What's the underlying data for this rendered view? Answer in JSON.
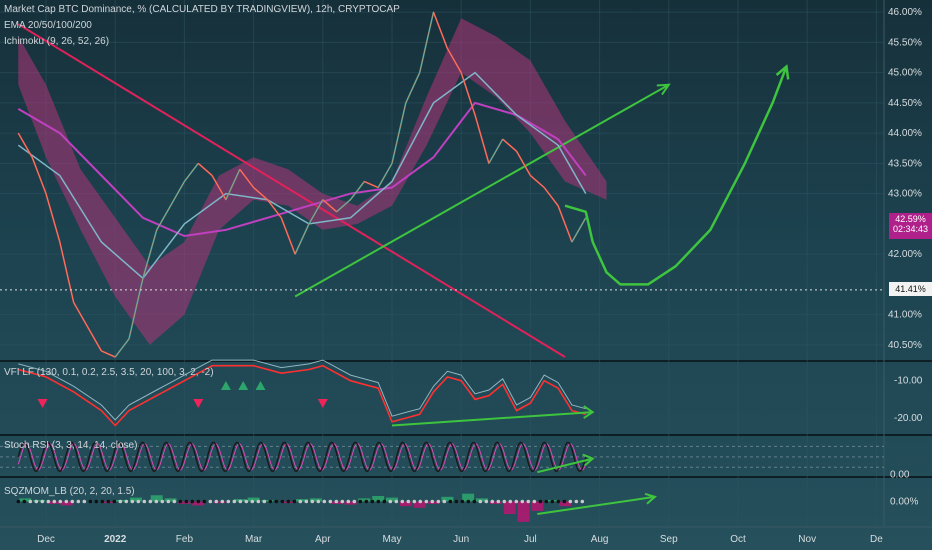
{
  "header": {
    "title": "Market Cap BTC Dominance, % (CALCULATED BY TRADINGVIEW), 12h, CRYPTOCAP",
    "ema": "EMA 20/50/100/200",
    "ichimoku": "Ichimoku (9, 26, 52, 26)"
  },
  "indicators": {
    "vfi": "VFI LF (130, 0.1, 0.2, 2.5, 3.5, 20, 100, 3, 2, -2)",
    "stoch": "Stoch RSI (3, 3, 14, 14, close)",
    "sqz": "SQZMOM_LB (20, 2, 20, 1.5)"
  },
  "price_badges": {
    "current_price": "42.59%",
    "countdown": "02:34:43",
    "hline_price": "41.41%"
  },
  "colors": {
    "up": "#26a69a",
    "down": "#ef5350",
    "arrow": "#3ec43e",
    "trend_red": "#e0225a",
    "ema_purple": "#c040c0",
    "hline": "#e0e0e0"
  },
  "chart_data": [
    {
      "type": "line",
      "title": "Market Cap BTC Dominance, % (CALCULATED BY TRADINGVIEW), 12h, CRYPTOCAP",
      "ylim": [
        40.25,
        46.2
      ],
      "yticks": [
        {
          "label": "46.00%",
          "v": 46.0
        },
        {
          "label": "45.50%",
          "v": 45.5
        },
        {
          "label": "45.00%",
          "v": 45.0
        },
        {
          "label": "44.50%",
          "v": 44.5
        },
        {
          "label": "44.00%",
          "v": 44.0
        },
        {
          "label": "43.50%",
          "v": 43.5
        },
        {
          "label": "43.00%",
          "v": 43.0
        },
        {
          "label": "42.00%",
          "v": 42.0
        },
        {
          "label": "41.00%",
          "v": 41.0
        },
        {
          "label": "40.50%",
          "v": 40.5
        }
      ],
      "xticks": [
        "Dec",
        "2022",
        "Feb",
        "Mar",
        "Apr",
        "May",
        "Jun",
        "Jul",
        "Aug",
        "Sep",
        "Oct",
        "Nov",
        "De"
      ],
      "x_month_index": [
        0,
        1,
        2,
        3,
        4,
        5,
        6,
        7,
        8,
        9,
        10,
        11,
        12
      ],
      "price": {
        "x": [
          -0.4,
          -0.2,
          0.0,
          0.2,
          0.4,
          0.6,
          0.8,
          1.0,
          1.2,
          1.4,
          1.6,
          1.8,
          2.0,
          2.2,
          2.4,
          2.6,
          2.8,
          3.0,
          3.2,
          3.4,
          3.6,
          3.8,
          4.0,
          4.2,
          4.4,
          4.6,
          4.8,
          5.0,
          5.2,
          5.4,
          5.6,
          5.8,
          6.0,
          6.2,
          6.4,
          6.6,
          6.8,
          7.0,
          7.2,
          7.4,
          7.6,
          7.8
        ],
        "y": [
          44.0,
          43.6,
          43.0,
          42.2,
          41.2,
          40.8,
          40.4,
          40.3,
          40.6,
          41.6,
          42.4,
          42.8,
          43.2,
          43.5,
          43.3,
          42.9,
          43.4,
          43.1,
          42.9,
          42.6,
          42.0,
          42.5,
          42.9,
          42.7,
          42.9,
          43.2,
          43.1,
          43.5,
          44.5,
          45.0,
          46.0,
          45.4,
          45.0,
          44.3,
          43.5,
          43.9,
          43.7,
          43.3,
          43.1,
          42.8,
          42.2,
          42.6
        ]
      },
      "ema200": {
        "x": [
          -0.4,
          0.2,
          0.8,
          1.4,
          2.0,
          2.6,
          3.2,
          3.8,
          4.4,
          5.0,
          5.6,
          6.2,
          6.8,
          7.4,
          7.8
        ],
        "y": [
          44.4,
          44.0,
          43.3,
          42.6,
          42.3,
          42.4,
          42.6,
          42.8,
          43.0,
          43.1,
          43.6,
          44.5,
          44.3,
          43.9,
          43.3
        ]
      },
      "ema100": {
        "x": [
          -0.4,
          0.2,
          0.8,
          1.4,
          2.0,
          2.6,
          3.2,
          3.8,
          4.4,
          5.0,
          5.6,
          6.2,
          6.8,
          7.4,
          7.8
        ],
        "y": [
          43.8,
          43.3,
          42.2,
          41.6,
          42.5,
          43.0,
          42.9,
          42.5,
          42.6,
          43.2,
          44.5,
          45.0,
          44.3,
          43.8,
          43.0
        ]
      },
      "cloud": {
        "x": [
          -0.4,
          0.0,
          0.5,
          1.0,
          1.5,
          2.0,
          2.5,
          3.0,
          3.5,
          4.0,
          4.5,
          5.0,
          5.5,
          6.0,
          6.5,
          7.0,
          7.5,
          8.1
        ],
        "top": [
          45.6,
          44.8,
          43.4,
          42.6,
          41.8,
          42.2,
          43.3,
          43.6,
          43.4,
          43.0,
          42.8,
          43.2,
          44.6,
          45.9,
          45.6,
          45.2,
          44.2,
          43.2
        ],
        "bottom": [
          44.8,
          43.6,
          42.4,
          41.3,
          40.5,
          41.0,
          42.4,
          42.9,
          42.8,
          42.4,
          42.5,
          42.8,
          43.8,
          45.0,
          44.6,
          44.0,
          43.2,
          42.9
        ]
      },
      "hline": {
        "y": 41.41
      },
      "trendlines": [
        {
          "name": "red-down",
          "x1": -0.4,
          "y1": 45.8,
          "x2": 7.5,
          "y2": 40.3
        },
        {
          "name": "green-up",
          "x1": 3.6,
          "y1": 41.3,
          "x2": 9.0,
          "y2": 44.8
        }
      ],
      "projection": {
        "x": [
          7.5,
          7.8,
          7.9,
          8.1,
          8.3,
          8.7,
          9.1,
          9.6,
          10.1,
          10.5,
          10.7
        ],
        "y": [
          42.8,
          42.7,
          42.2,
          41.7,
          41.5,
          41.5,
          41.8,
          42.4,
          43.5,
          44.5,
          45.1
        ]
      }
    },
    {
      "type": "line",
      "title": "VFI LF (130, 0.1, 0.2, 2.5, 3.5, 20, 100, 3, 2, -2)",
      "ylim": [
        -24,
        -5
      ],
      "yticks": [
        {
          "label": "-10.00",
          "v": -10
        },
        {
          "label": "-20.00",
          "v": -20
        }
      ],
      "vfi": {
        "x": [
          -0.4,
          0.0,
          0.4,
          0.8,
          1.0,
          1.2,
          1.4,
          1.6,
          1.8,
          2.0,
          2.2,
          2.4,
          2.6,
          3.0,
          3.4,
          3.8,
          4.0,
          4.4,
          4.8,
          5.0,
          5.2,
          5.4,
          5.6,
          5.8,
          6.0,
          6.2,
          6.4,
          6.6,
          6.8,
          7.0,
          7.2,
          7.4,
          7.6,
          7.8
        ],
        "y": [
          -7,
          -9,
          -13,
          -18,
          -22,
          -18,
          -16,
          -14,
          -12,
          -10,
          -8,
          -6,
          -6,
          -6,
          -8,
          -7,
          -6,
          -10,
          -12,
          -21,
          -20,
          -19,
          -13,
          -9,
          -10,
          -15,
          -14,
          -11,
          -18,
          -16,
          -10,
          -12,
          -18,
          -19
        ]
      },
      "signal_down_x": [
        -0.05,
        2.2,
        4.0
      ],
      "signal_up_x": [
        2.6,
        2.85,
        3.1
      ],
      "trendline": {
        "x1": 5.0,
        "y1": -22.0,
        "x2": 7.9,
        "y2": -18.4
      }
    },
    {
      "type": "line",
      "title": "Stoch RSI (3, 3, 14, 14, close)",
      "ylim": [
        -5,
        110
      ],
      "yticks": [
        {
          "label": "0.00",
          "v": 0
        }
      ],
      "bands": [
        20,
        50,
        80
      ],
      "k_cycles": 48,
      "x_range": [
        -0.4,
        7.8
      ],
      "trendline": {
        "x1": 7.1,
        "y1": 6,
        "x2": 7.9,
        "y2": 45
      }
    },
    {
      "type": "bar",
      "title": "SQZMOM_LB (20, 2, 20, 1.5)",
      "ylim": [
        -3,
        3
      ],
      "yticks": [
        {
          "label": "0.00%",
          "v": 0
        }
      ],
      "x_range": [
        -0.4,
        7.8
      ],
      "histogram": {
        "x": [
          -0.3,
          -0.1,
          0.1,
          0.3,
          0.9,
          1.1,
          1.3,
          1.6,
          1.8,
          2.0,
          2.2,
          2.5,
          2.8,
          3.0,
          3.2,
          3.5,
          3.7,
          3.9,
          4.2,
          4.4,
          4.6,
          4.8,
          5.0,
          5.2,
          5.4,
          5.6,
          5.8,
          6.1,
          6.3,
          6.5,
          6.7,
          6.9,
          7.1,
          7.3,
          7.5
        ],
        "v": [
          0.4,
          0.2,
          -0.3,
          -0.5,
          -0.2,
          0.2,
          0.5,
          0.8,
          0.4,
          -0.3,
          -0.5,
          -0.2,
          0.3,
          0.5,
          0.2,
          -0.2,
          0.3,
          0.4,
          -0.3,
          -0.4,
          0.4,
          0.7,
          0.5,
          -0.6,
          -0.8,
          -0.3,
          0.6,
          1.0,
          0.4,
          -0.3,
          -1.6,
          -2.6,
          -1.2,
          0.2,
          -0.6
        ]
      },
      "trendline": {
        "x1": 7.1,
        "y1": -1.6,
        "x2": 8.8,
        "y2": 0.6
      }
    }
  ]
}
